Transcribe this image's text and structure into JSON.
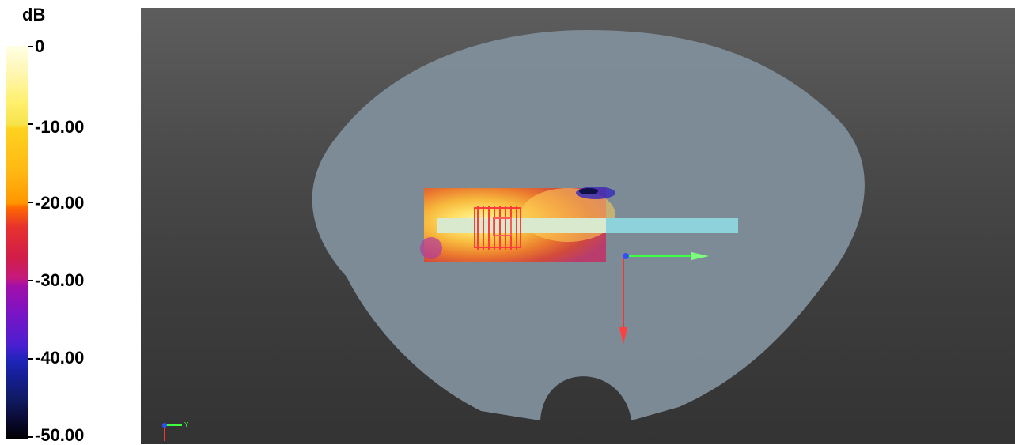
{
  "legend": {
    "unit": "dB",
    "ticks": [
      {
        "label": "0"
      },
      {
        "label": "-10.00"
      },
      {
        "label": "-20.00"
      },
      {
        "label": "-30.00"
      },
      {
        "label": "-40.00"
      },
      {
        "label": "-50.00"
      }
    ]
  },
  "triad": {
    "y_label": "Y"
  },
  "colors": {
    "phantom": "#7f8d99",
    "feed_line": "#8ed3dc",
    "axis_x": "#ff3030",
    "axis_y": "#3dff3d",
    "axis_z": "#3050ff"
  }
}
